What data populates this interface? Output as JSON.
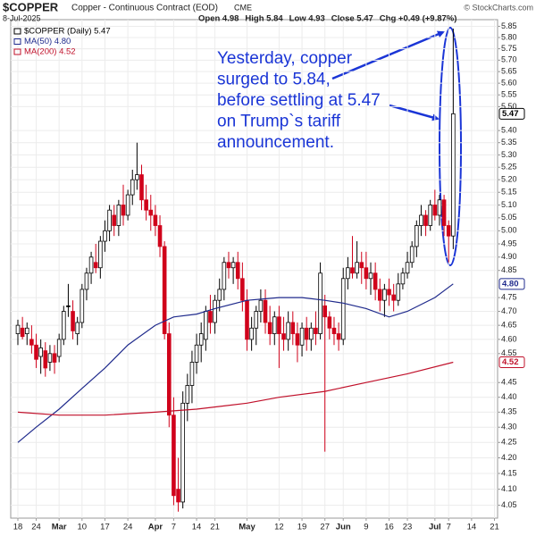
{
  "chart_data": {
    "type": "candlestick",
    "title": "$COPPER",
    "subtitle": "Copper - Continuous Contract (EOD)",
    "exchange": "CME",
    "date": "8-Jul-2025",
    "credit": "© StockCharts.com",
    "quote": [
      "Open 4.98",
      "High 5.84",
      "Low 4.93",
      "Close 5.47",
      "Chg +0.49 (+9.87%)"
    ],
    "log": true,
    "grid": true,
    "ylim": [
      4.01,
      5.88
    ],
    "yticks": [
      {
        "value": 5.85,
        "label": "5.85"
      },
      {
        "value": 5.8,
        "label": "5.80"
      },
      {
        "value": 5.75,
        "label": "5.75"
      },
      {
        "value": 5.7,
        "label": "5.70"
      },
      {
        "value": 5.65,
        "label": "5.65"
      },
      {
        "value": 5.6,
        "label": "5.60"
      },
      {
        "value": 5.55,
        "label": "5.55"
      },
      {
        "value": 5.5,
        "label": "5.50"
      },
      {
        "value": 5.4,
        "label": "5.40"
      },
      {
        "value": 5.35,
        "label": "5.35"
      },
      {
        "value": 5.3,
        "label": "5.30"
      },
      {
        "value": 5.25,
        "label": "5.25"
      },
      {
        "value": 5.2,
        "label": "5.20"
      },
      {
        "value": 5.15,
        "label": "5.15"
      },
      {
        "value": 5.1,
        "label": "5.10"
      },
      {
        "value": 5.05,
        "label": "5.05"
      },
      {
        "value": 5,
        "label": "5.00"
      },
      {
        "value": 4.95,
        "label": "4.95"
      },
      {
        "value": 4.9,
        "label": "4.90"
      },
      {
        "value": 4.85,
        "label": "4.85"
      },
      {
        "value": 4.75,
        "label": "4.75"
      },
      {
        "value": 4.7,
        "label": "4.70"
      },
      {
        "value": 4.65,
        "label": "4.65"
      },
      {
        "value": 4.6,
        "label": "4.60"
      },
      {
        "value": 4.55,
        "label": "4.55"
      },
      {
        "value": 4.45,
        "label": "4.45"
      },
      {
        "value": 4.4,
        "label": "4.40"
      },
      {
        "value": 4.35,
        "label": "4.35"
      },
      {
        "value": 4.3,
        "label": "4.30"
      },
      {
        "value": 4.25,
        "label": "4.25"
      },
      {
        "value": 4.2,
        "label": "4.20"
      },
      {
        "value": 4.15,
        "label": "4.15"
      },
      {
        "value": 4.1,
        "label": "4.10"
      },
      {
        "value": 4.05,
        "label": "4.05"
      }
    ],
    "price_markers": [
      {
        "value": 5.47,
        "label": "5.47",
        "color": "#000000"
      },
      {
        "value": 4.8,
        "label": "4.80",
        "color": "#1f2a8c"
      },
      {
        "value": 4.52,
        "label": "4.52",
        "color": "#c0102a"
      }
    ],
    "xticks": [
      {
        "value": "2025-02-18",
        "label": "18"
      },
      {
        "value": "2025-02-24",
        "label": "24"
      },
      {
        "value": "2025-03-03",
        "label": "Mar"
      },
      {
        "value": "2025-03-10",
        "label": "10"
      },
      {
        "value": "2025-03-17",
        "label": "17"
      },
      {
        "value": "2025-03-24",
        "label": "24"
      },
      {
        "value": "2025-04-01",
        "label": "Apr"
      },
      {
        "value": "2025-04-07",
        "label": "7"
      },
      {
        "value": "2025-04-14",
        "label": "14"
      },
      {
        "value": "2025-04-21",
        "label": "21"
      },
      {
        "value": "2025-05-01",
        "label": "May"
      },
      {
        "value": "2025-05-12",
        "label": "12"
      },
      {
        "value": "2025-05-19",
        "label": "19"
      },
      {
        "value": "2025-05-27",
        "label": "27"
      },
      {
        "value": "2025-06-02",
        "label": "Jun"
      },
      {
        "value": "2025-06-09",
        "label": "9"
      },
      {
        "value": "2025-06-16",
        "label": "16"
      },
      {
        "value": "2025-06-23",
        "label": "23"
      },
      {
        "value": "2025-07-01",
        "label": "Jul"
      },
      {
        "value": "2025-07-07",
        "label": "7"
      },
      {
        "value": "2025-07-14",
        "label": "14"
      },
      {
        "value": "2025-07-21",
        "label": "21"
      }
    ],
    "x": [
      "2025-02-18",
      "2025-02-19",
      "2025-02-20",
      "2025-02-21",
      "2025-02-24",
      "2025-02-25",
      "2025-02-26",
      "2025-02-27",
      "2025-02-28",
      "2025-03-03",
      "2025-03-04",
      "2025-03-05",
      "2025-03-06",
      "2025-03-07",
      "2025-03-10",
      "2025-03-11",
      "2025-03-12",
      "2025-03-13",
      "2025-03-14",
      "2025-03-17",
      "2025-03-18",
      "2025-03-19",
      "2025-03-20",
      "2025-03-21",
      "2025-03-24",
      "2025-03-25",
      "2025-03-26",
      "2025-03-27",
      "2025-03-28",
      "2025-03-31",
      "2025-04-01",
      "2025-04-02",
      "2025-04-03",
      "2025-04-04",
      "2025-04-07",
      "2025-04-08",
      "2025-04-09",
      "2025-04-10",
      "2025-04-11",
      "2025-04-14",
      "2025-04-15",
      "2025-04-16",
      "2025-04-17",
      "2025-04-21",
      "2025-04-22",
      "2025-04-23",
      "2025-04-24",
      "2025-04-25",
      "2025-04-28",
      "2025-04-29",
      "2025-05-01",
      "2025-05-02",
      "2025-05-05",
      "2025-05-06",
      "2025-05-07",
      "2025-05-08",
      "2025-05-09",
      "2025-05-12",
      "2025-05-13",
      "2025-05-14",
      "2025-05-15",
      "2025-05-16",
      "2025-05-19",
      "2025-05-20",
      "2025-05-21",
      "2025-05-22",
      "2025-05-23",
      "2025-05-27",
      "2025-05-28",
      "2025-05-29",
      "2025-05-30",
      "2025-06-02",
      "2025-06-03",
      "2025-06-04",
      "2025-06-05",
      "2025-06-06",
      "2025-06-09",
      "2025-06-10",
      "2025-06-11",
      "2025-06-12",
      "2025-06-13",
      "2025-06-16",
      "2025-06-17",
      "2025-06-18",
      "2025-06-20",
      "2025-06-23",
      "2025-06-24",
      "2025-06-25",
      "2025-06-26",
      "2025-06-27",
      "2025-06-30",
      "2025-07-01",
      "2025-07-02",
      "2025-07-03",
      "2025-07-07",
      "2025-07-08"
    ],
    "series": [
      {
        "name": "$COPPER (Daily) 5.47",
        "color": "#000000",
        "down_color": "#d0021b",
        "open": [
          4.62,
          4.64,
          4.62,
          4.6,
          4.58,
          4.54,
          4.56,
          4.52,
          4.55,
          4.54,
          4.6,
          4.72,
          4.7,
          4.62,
          4.66,
          4.78,
          4.84,
          4.88,
          4.86,
          4.96,
          5.0,
          5.06,
          5.02,
          5.1,
          5.06,
          5.14,
          5.2,
          5.22,
          5.12,
          5.08,
          5.06,
          5.02,
          4.94,
          4.62,
          4.34,
          4.1,
          4.06,
          4.38,
          4.44,
          4.52,
          4.58,
          4.6,
          4.7,
          4.66,
          4.74,
          4.78,
          4.88,
          4.86,
          4.88,
          4.82,
          4.74,
          4.6,
          4.64,
          4.7,
          4.74,
          4.66,
          4.62,
          4.68,
          4.62,
          4.6,
          4.66,
          4.62,
          4.58,
          4.64,
          4.6,
          4.64,
          4.62,
          4.72,
          4.68,
          4.64,
          4.62,
          4.6,
          4.82,
          4.86,
          4.84,
          4.88,
          4.86,
          4.82,
          4.84,
          4.78,
          4.74,
          4.78,
          4.76,
          4.74,
          4.8,
          4.84,
          4.88,
          4.94,
          5.02,
          5.06,
          5.02,
          5.1,
          5.06,
          5.12,
          5.02,
          4.98
        ],
        "high": [
          4.67,
          4.68,
          4.66,
          4.65,
          4.62,
          4.6,
          4.59,
          4.58,
          4.58,
          4.62,
          4.72,
          4.8,
          4.74,
          4.68,
          4.8,
          4.86,
          4.92,
          4.95,
          4.98,
          5.04,
          5.1,
          5.1,
          5.12,
          5.18,
          5.16,
          5.24,
          5.35,
          5.26,
          5.18,
          5.14,
          5.1,
          5.06,
          4.96,
          4.66,
          4.4,
          4.2,
          4.42,
          4.48,
          4.56,
          4.62,
          4.66,
          4.72,
          4.76,
          4.76,
          4.82,
          4.9,
          4.92,
          4.9,
          4.92,
          4.88,
          4.78,
          4.68,
          4.72,
          4.78,
          4.78,
          4.72,
          4.7,
          4.72,
          4.68,
          4.7,
          4.7,
          4.66,
          4.66,
          4.68,
          4.66,
          4.7,
          4.88,
          4.76,
          4.7,
          4.68,
          4.66,
          4.86,
          4.9,
          4.98,
          4.96,
          4.92,
          4.92,
          4.88,
          4.88,
          4.82,
          4.8,
          4.82,
          4.8,
          4.84,
          4.86,
          4.92,
          4.96,
          5.04,
          5.1,
          5.08,
          5.12,
          5.16,
          5.14,
          5.14,
          5.04,
          5.84
        ],
        "low": [
          4.58,
          4.6,
          4.58,
          4.55,
          4.5,
          4.48,
          4.47,
          4.49,
          4.48,
          4.52,
          4.58,
          4.68,
          4.6,
          4.58,
          4.64,
          4.74,
          4.8,
          4.84,
          4.82,
          4.92,
          4.96,
          4.98,
          4.98,
          5.02,
          5.04,
          5.1,
          5.16,
          5.08,
          5.04,
          5.0,
          4.98,
          4.9,
          4.6,
          4.3,
          4.05,
          4.03,
          4.04,
          4.32,
          4.38,
          4.48,
          4.52,
          4.56,
          4.62,
          4.62,
          4.7,
          4.74,
          4.82,
          4.8,
          4.78,
          4.7,
          4.56,
          4.56,
          4.58,
          4.66,
          4.62,
          4.58,
          4.58,
          4.5,
          4.56,
          4.56,
          4.58,
          4.52,
          4.54,
          4.56,
          4.56,
          4.58,
          4.6,
          4.22,
          4.6,
          4.58,
          4.56,
          4.58,
          4.78,
          4.82,
          4.82,
          4.8,
          4.78,
          4.76,
          4.74,
          4.7,
          4.68,
          4.72,
          4.7,
          4.72,
          4.78,
          4.82,
          4.86,
          4.9,
          4.98,
          4.98,
          5.0,
          5.04,
          5.02,
          4.98,
          4.88,
          4.93
        ],
        "close": [
          4.65,
          4.61,
          4.64,
          4.58,
          4.53,
          4.57,
          4.5,
          4.55,
          4.52,
          4.6,
          4.7,
          4.72,
          4.63,
          4.66,
          4.78,
          4.84,
          4.9,
          4.86,
          4.96,
          5.0,
          5.08,
          5.02,
          5.1,
          5.06,
          5.14,
          5.2,
          5.22,
          5.12,
          5.08,
          5.06,
          5.02,
          4.94,
          4.62,
          4.34,
          4.08,
          4.06,
          4.38,
          4.44,
          4.52,
          4.58,
          4.62,
          4.7,
          4.66,
          4.74,
          4.78,
          4.88,
          4.86,
          4.88,
          4.82,
          4.74,
          4.6,
          4.64,
          4.7,
          4.74,
          4.66,
          4.62,
          4.68,
          4.62,
          4.6,
          4.66,
          4.62,
          4.58,
          4.64,
          4.6,
          4.64,
          4.62,
          4.84,
          4.68,
          4.64,
          4.62,
          4.6,
          4.82,
          4.86,
          4.84,
          4.88,
          4.86,
          4.82,
          4.84,
          4.78,
          4.74,
          4.78,
          4.76,
          4.74,
          4.8,
          4.84,
          4.88,
          4.94,
          5.02,
          5.06,
          5.02,
          5.1,
          5.06,
          5.12,
          5.02,
          4.98,
          5.47
        ]
      },
      {
        "name": "MA(50) 4.80",
        "color": "#1f2a8c",
        "type": "line",
        "x": [
          "2025-02-18",
          "2025-02-24",
          "2025-03-03",
          "2025-03-10",
          "2025-03-17",
          "2025-03-24",
          "2025-04-01",
          "2025-04-07",
          "2025-04-14",
          "2025-04-21",
          "2025-05-01",
          "2025-05-12",
          "2025-05-19",
          "2025-05-27",
          "2025-06-02",
          "2025-06-09",
          "2025-06-16",
          "2025-06-23",
          "2025-07-01",
          "2025-07-08"
        ],
        "values": [
          4.25,
          4.3,
          4.36,
          4.43,
          4.5,
          4.58,
          4.65,
          4.68,
          4.69,
          4.71,
          4.74,
          4.75,
          4.75,
          4.74,
          4.73,
          4.71,
          4.68,
          4.7,
          4.75,
          4.8
        ]
      },
      {
        "name": "MA(200) 4.52",
        "color": "#c0102a",
        "type": "line",
        "x": [
          "2025-02-18",
          "2025-03-03",
          "2025-03-17",
          "2025-04-01",
          "2025-04-14",
          "2025-05-01",
          "2025-05-12",
          "2025-05-27",
          "2025-06-09",
          "2025-06-23",
          "2025-07-08"
        ],
        "values": [
          4.35,
          4.34,
          4.34,
          4.35,
          4.36,
          4.38,
          4.4,
          4.42,
          4.45,
          4.48,
          4.52
        ]
      }
    ],
    "annotation": [
      "Yesterday, copper",
      "surged to 5.84,",
      "before settling at 5.47",
      "on Trump`s tariff",
      "announcement."
    ]
  }
}
